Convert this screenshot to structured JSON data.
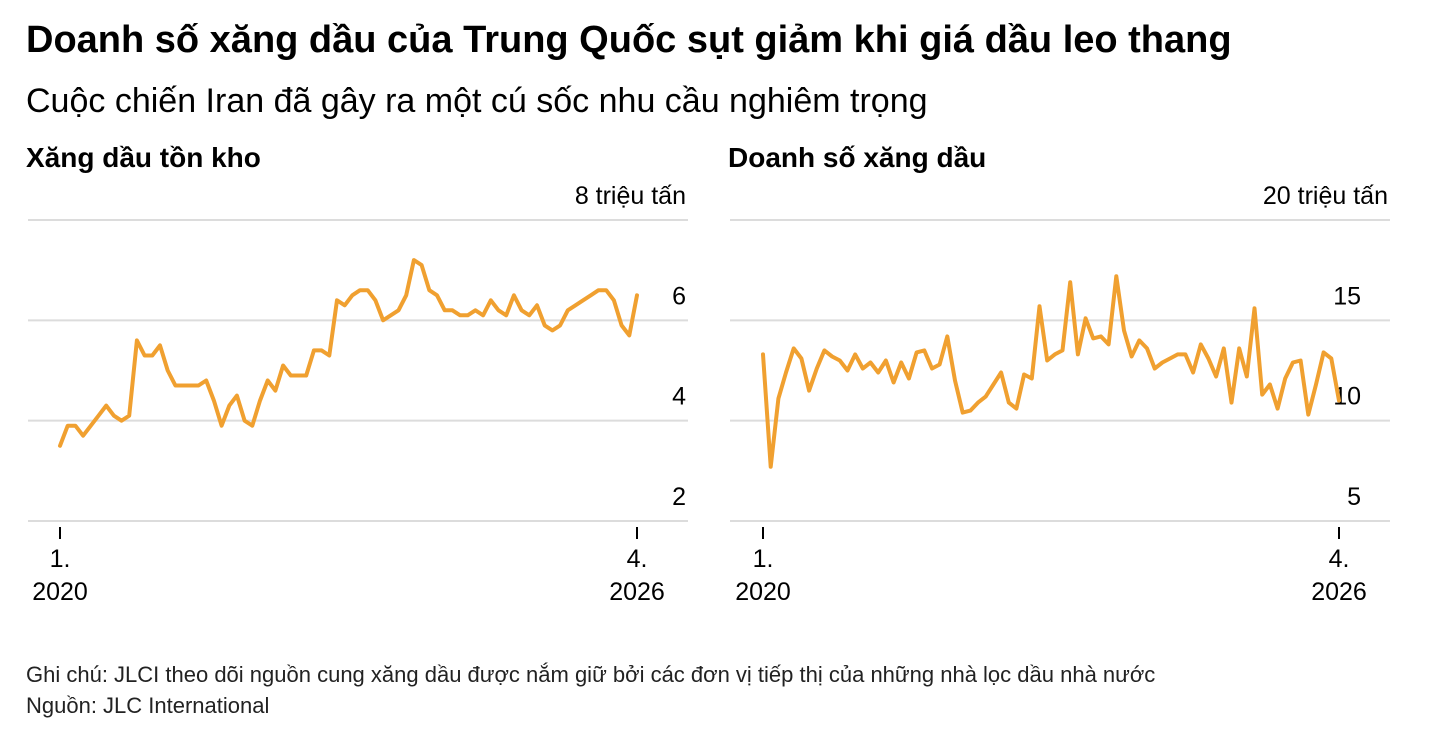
{
  "title": "Doanh số xăng dầu của Trung Quốc sụt giảm khi giá dầu leo thang",
  "subtitle": "Cuộc chiến Iran đã gây ra một cú sốc nhu cầu nghiêm trọng",
  "chart_data": [
    {
      "type": "line",
      "title": "Xăng dầu tồn kho",
      "color": "#f0a030",
      "x": [
        "2020-01",
        "2020-02",
        "2020-03",
        "2020-04",
        "2020-05",
        "2020-06",
        "2020-07",
        "2020-08",
        "2020-09",
        "2020-10",
        "2020-11",
        "2020-12",
        "2021-01",
        "2021-02",
        "2021-03",
        "2021-04",
        "2021-05",
        "2021-06",
        "2021-07",
        "2021-08",
        "2021-09",
        "2021-10",
        "2021-11",
        "2021-12",
        "2022-01",
        "2022-02",
        "2022-03",
        "2022-04",
        "2022-05",
        "2022-06",
        "2022-07",
        "2022-08",
        "2022-09",
        "2022-10",
        "2022-11",
        "2022-12",
        "2023-01",
        "2023-02",
        "2023-03",
        "2023-04",
        "2023-05",
        "2023-06",
        "2023-07",
        "2023-08",
        "2023-09",
        "2023-10",
        "2023-11",
        "2023-12",
        "2024-01",
        "2024-02",
        "2024-03",
        "2024-04",
        "2024-05",
        "2024-06",
        "2024-07",
        "2024-08",
        "2024-09",
        "2024-10",
        "2024-11",
        "2024-12",
        "2025-01",
        "2025-02",
        "2025-03",
        "2025-04",
        "2025-05",
        "2025-06",
        "2025-07",
        "2025-08",
        "2025-09",
        "2025-10",
        "2025-11",
        "2025-12",
        "2026-01",
        "2026-02",
        "2026-03",
        "2026-04"
      ],
      "values": [
        3.5,
        3.9,
        3.9,
        3.7,
        3.9,
        4.1,
        4.3,
        4.1,
        4.0,
        4.1,
        5.6,
        5.3,
        5.3,
        5.5,
        5.0,
        4.7,
        4.7,
        4.7,
        4.7,
        4.8,
        4.4,
        3.9,
        4.3,
        4.5,
        4.0,
        3.9,
        4.4,
        4.8,
        4.6,
        5.1,
        4.9,
        4.9,
        4.9,
        5.4,
        5.4,
        5.3,
        6.4,
        6.3,
        6.5,
        6.6,
        6.6,
        6.4,
        6.0,
        6.1,
        6.2,
        6.5,
        7.2,
        7.1,
        6.6,
        6.5,
        6.2,
        6.2,
        6.1,
        6.1,
        6.2,
        6.1,
        6.4,
        6.2,
        6.1,
        6.5,
        6.2,
        6.1,
        6.3,
        5.9,
        5.8,
        5.9,
        6.2,
        6.3,
        6.4,
        6.5,
        6.6,
        6.6,
        6.4,
        5.9,
        5.7,
        6.5
      ],
      "xlim": [
        "2020-01",
        "2026-04"
      ],
      "xticks": [
        {
          "value": "2020-01",
          "label": [
            "1.",
            "2020"
          ]
        },
        {
          "value": "2026-04",
          "label": [
            "4.",
            "2026"
          ]
        }
      ],
      "ylim": [
        2,
        8
      ],
      "yticks": [
        2,
        4,
        6,
        {
          "value": 8,
          "label": "8 triệu tấn"
        }
      ],
      "grid": true
    },
    {
      "type": "line",
      "title": "Doanh số xăng dầu",
      "color": "#f0a030",
      "x": [
        "2020-01",
        "2020-02",
        "2020-03",
        "2020-04",
        "2020-05",
        "2020-06",
        "2020-07",
        "2020-08",
        "2020-09",
        "2020-10",
        "2020-11",
        "2020-12",
        "2021-01",
        "2021-02",
        "2021-03",
        "2021-04",
        "2021-05",
        "2021-06",
        "2021-07",
        "2021-08",
        "2021-09",
        "2021-10",
        "2021-11",
        "2021-12",
        "2022-01",
        "2022-02",
        "2022-03",
        "2022-04",
        "2022-05",
        "2022-06",
        "2022-07",
        "2022-08",
        "2022-09",
        "2022-10",
        "2022-11",
        "2022-12",
        "2023-01",
        "2023-02",
        "2023-03",
        "2023-04",
        "2023-05",
        "2023-06",
        "2023-07",
        "2023-08",
        "2023-09",
        "2023-10",
        "2023-11",
        "2023-12",
        "2024-01",
        "2024-02",
        "2024-03",
        "2024-04",
        "2024-05",
        "2024-06",
        "2024-07",
        "2024-08",
        "2024-09",
        "2024-10",
        "2024-11",
        "2024-12",
        "2025-01",
        "2025-02",
        "2025-03",
        "2025-04",
        "2025-05",
        "2025-06",
        "2025-07",
        "2025-08",
        "2025-09",
        "2025-10",
        "2025-11",
        "2025-12",
        "2026-01",
        "2026-02",
        "2026-03",
        "2026-04"
      ],
      "values": [
        13.3,
        7.7,
        11.1,
        12.4,
        13.6,
        13.1,
        11.5,
        12.6,
        13.5,
        13.2,
        13.0,
        12.5,
        13.3,
        12.6,
        12.9,
        12.4,
        13.0,
        11.9,
        12.9,
        12.1,
        13.4,
        13.5,
        12.6,
        12.8,
        14.2,
        12.0,
        10.4,
        10.5,
        10.9,
        11.2,
        11.8,
        12.4,
        10.9,
        10.6,
        12.3,
        12.1,
        15.7,
        13.0,
        13.3,
        13.5,
        16.9,
        13.3,
        15.1,
        14.1,
        14.2,
        13.8,
        17.2,
        14.5,
        13.2,
        14.0,
        13.6,
        12.6,
        12.9,
        13.1,
        13.3,
        13.3,
        12.4,
        13.8,
        13.1,
        12.2,
        13.6,
        10.9,
        13.6,
        12.2,
        15.6,
        11.3,
        11.8,
        10.6,
        12.1,
        12.9,
        13.0,
        10.3,
        11.8,
        13.4,
        13.1,
        11.0
      ],
      "xlim": [
        "2020-01",
        "2026-04"
      ],
      "xticks": [
        {
          "value": "2020-01",
          "label": [
            "1.",
            "2020"
          ]
        },
        {
          "value": "2026-04",
          "label": [
            "4.",
            "2026"
          ]
        }
      ],
      "ylim": [
        5,
        20
      ],
      "yticks": [
        5,
        10,
        15,
        {
          "value": 20,
          "label": "20 triệu tấn"
        }
      ],
      "grid": true
    }
  ],
  "notes": [
    "Ghi chú: JLCI theo dõi nguồn cung xăng dầu được nắm giữ bởi các đơn vị tiếp thị của những nhà lọc dầu nhà nước",
    "Nguồn: JLC International"
  ]
}
